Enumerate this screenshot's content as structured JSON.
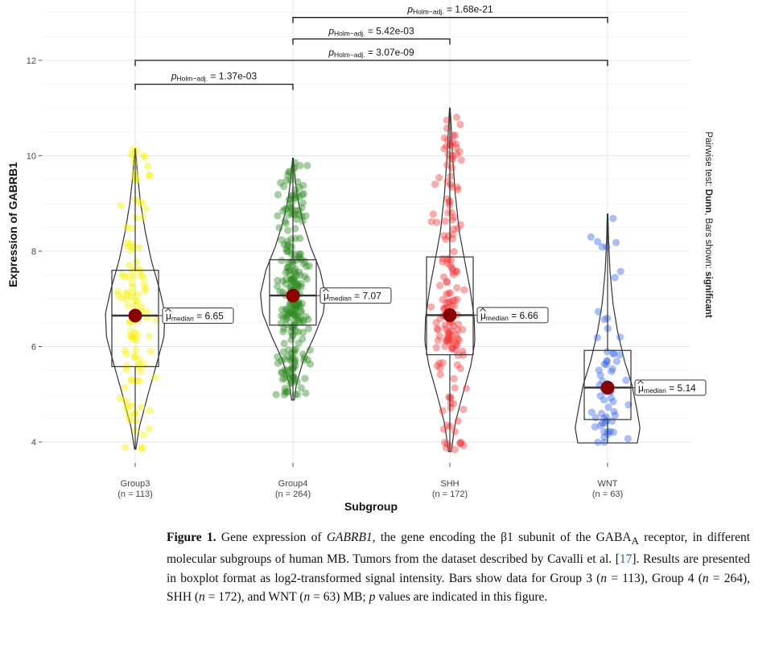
{
  "chart_data": {
    "type": "violin",
    "xlabel": "Subgroup",
    "ylabel": "Expression of GABRB1",
    "ylim": [
      3.7,
      13.6
    ],
    "yticks": [
      4,
      6,
      8,
      10,
      12
    ],
    "ytick_labels": [
      "4",
      "6",
      "8",
      "10",
      "12"
    ],
    "right_label_prefix": "Pairwise test: ",
    "right_label_test": "Dunn",
    "right_label_mid": ", Bars shown: ",
    "right_label_shown": "significant",
    "median_symbol": "μ",
    "median_sub": "median",
    "groups": [
      {
        "name": "Group3",
        "n_label": "(n = 113)",
        "color": "#f5f000",
        "min": 3.85,
        "max": 10.15,
        "q1": 5.58,
        "median": 6.65,
        "q3": 7.6,
        "median_label": "= 6.65",
        "profile": [
          [
            3.85,
            0.02
          ],
          [
            4.3,
            0.12
          ],
          [
            5.0,
            0.38
          ],
          [
            5.6,
            0.62
          ],
          [
            6.2,
            0.85
          ],
          [
            6.7,
            0.88
          ],
          [
            7.2,
            0.72
          ],
          [
            7.8,
            0.48
          ],
          [
            8.4,
            0.3
          ],
          [
            9.0,
            0.16
          ],
          [
            9.6,
            0.07
          ],
          [
            10.15,
            0.01
          ]
        ]
      },
      {
        "name": "Group4",
        "n_label": "(n = 264)",
        "color": "#2e8b22",
        "min": 4.88,
        "max": 9.95,
        "q1": 6.45,
        "median": 7.07,
        "q3": 7.82,
        "median_label": "= 7.07",
        "profile": [
          [
            4.88,
            0.04
          ],
          [
            5.2,
            0.1
          ],
          [
            5.7,
            0.3
          ],
          [
            6.2,
            0.62
          ],
          [
            6.7,
            0.9
          ],
          [
            7.1,
            0.96
          ],
          [
            7.6,
            0.8
          ],
          [
            8.1,
            0.52
          ],
          [
            8.6,
            0.3
          ],
          [
            9.1,
            0.14
          ],
          [
            9.6,
            0.05
          ],
          [
            9.95,
            0.01
          ]
        ]
      },
      {
        "name": "SHH",
        "n_label": "(n = 172)",
        "color": "#f03a3a",
        "min": 3.8,
        "max": 11.0,
        "q1": 5.83,
        "median": 6.66,
        "q3": 7.88,
        "median_label": "= 6.66",
        "profile": [
          [
            3.8,
            0.04
          ],
          [
            4.4,
            0.16
          ],
          [
            5.0,
            0.38
          ],
          [
            5.6,
            0.62
          ],
          [
            6.1,
            0.74
          ],
          [
            6.6,
            0.72
          ],
          [
            7.2,
            0.6
          ],
          [
            7.8,
            0.44
          ],
          [
            8.4,
            0.28
          ],
          [
            9.2,
            0.16
          ],
          [
            10.0,
            0.08
          ],
          [
            10.6,
            0.04
          ],
          [
            11.0,
            0.01
          ]
        ]
      },
      {
        "name": "WNT",
        "n_label": "(n = 63)",
        "color": "#3a66e8",
        "min": 3.98,
        "max": 8.78,
        "q1": 4.47,
        "median": 5.14,
        "q3": 5.92,
        "median_label": "= 5.14",
        "profile": [
          [
            3.98,
            0.88
          ],
          [
            4.3,
            0.96
          ],
          [
            4.7,
            0.86
          ],
          [
            5.2,
            0.72
          ],
          [
            5.7,
            0.5
          ],
          [
            6.3,
            0.3
          ],
          [
            6.9,
            0.16
          ],
          [
            7.6,
            0.07
          ],
          [
            8.2,
            0.03
          ],
          [
            8.78,
            0.01
          ]
        ]
      }
    ],
    "comparisons": [
      {
        "from": 0,
        "to": 1,
        "y": 11.5,
        "stat_sub": "Holm−adj.",
        "value": "= 1.37e-03"
      },
      {
        "from": 0,
        "to": 3,
        "y": 12.0,
        "stat_sub": "Holm−adj.",
        "value": "= 3.07e-09"
      },
      {
        "from": 1,
        "to": 2,
        "y": 12.45,
        "stat_sub": "Holm−adj.",
        "value": "= 5.42e-03"
      },
      {
        "from": 1,
        "to": 3,
        "y": 12.9,
        "stat_sub": "Holm−adj.",
        "value": "= 1.68e-21"
      }
    ]
  },
  "caption": {
    "lead": "Figure 1.",
    "t1": " Gene expression of ",
    "gene": "GABRB1",
    "t2": ", the gene encoding the β1 subunit of the GABA",
    "sub_a": "A",
    "t3": " receptor, in different molecular subgroups of human MB. Tumors from the dataset described by Cavalli et al. [",
    "ref": "17",
    "t4": "]. Results are presented in boxplot format as log2-transformed signal intensity. Bars show data for Group 3 (",
    "n1": "n",
    "t5": " = 113), Group 4 (",
    "n2": "n",
    "t6": " = 264), SHH (",
    "n3": "n",
    "t7": " = 172), and WNT (",
    "n4": "n",
    "t8": " = 63) MB; ",
    "p": "p",
    "t9": " values are indicated in this figure."
  }
}
